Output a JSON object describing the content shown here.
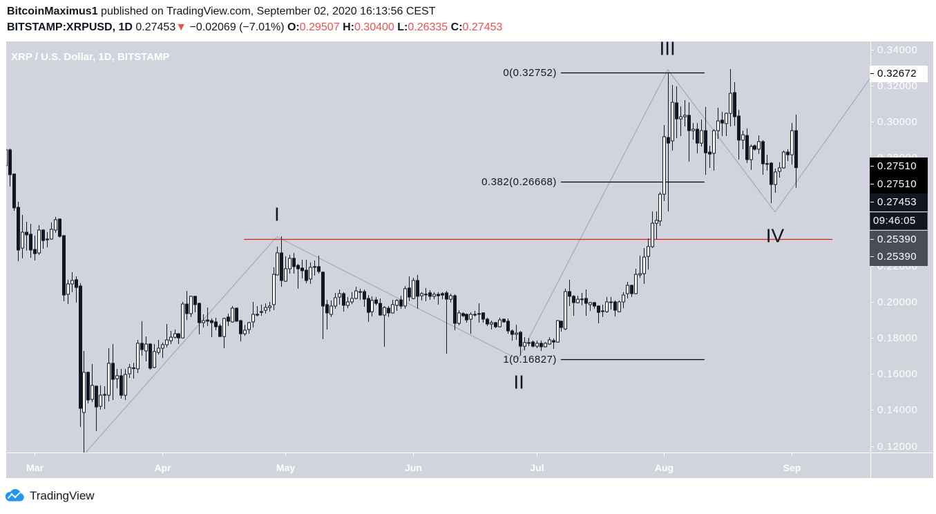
{
  "header": {
    "author": "BitcoinMaximus1",
    "published_text": " published on TradingView.com, September 02, 2020 16:13:56 CEST",
    "symbol": "BITSTAMP:XRPUSD, 1D",
    "last_price": "0.27453",
    "change_arrow": "▼",
    "change": "−0.02069 (−7.01%)",
    "ohlc": [
      {
        "label": "O:",
        "value": "0.29507"
      },
      {
        "label": "H:",
        "value": "0.30400"
      },
      {
        "label": "L:",
        "value": "0.26335"
      },
      {
        "label": "C:",
        "value": "0.27453"
      }
    ]
  },
  "chart": {
    "title": "XRP / U.S. Dollar, 1D, BITSTAMP"
  },
  "price_axis": {
    "top_badge": {
      "value": "0.32672",
      "kind": "white"
    },
    "badges": [
      {
        "value": "0.27510",
        "kind": "black"
      },
      {
        "value": "0.27510",
        "kind": "black"
      },
      {
        "value": "0.27453",
        "kind": "navy"
      },
      {
        "value": "09:46:05",
        "kind": "countdown"
      },
      {
        "value": "0.25390",
        "kind": "gray"
      },
      {
        "value": "0.25390",
        "kind": "gray"
      }
    ]
  },
  "footer": {
    "brand": "TradingView",
    "brand_color": "#2196f3"
  },
  "colors": {
    "chart_bg": "#d1d4dc",
    "down_value": "#ef5350",
    "candle_dark": "#131722",
    "candle_hollow": "#ffffff",
    "support_line": "#e31b1b",
    "zigzag": "#9ea1aa"
  },
  "chart_data": {
    "type": "candlestick",
    "title": "XRP / U.S. Dollar, 1D, BITSTAMP",
    "symbol": "BITSTAMP:XRPUSD",
    "interval": "1D",
    "xlabel": "",
    "ylabel": "",
    "ylim": [
      0.115,
      0.343
    ],
    "grid": false,
    "x_ticks": [
      {
        "label": "Mar",
        "index": 7
      },
      {
        "label": "Apr",
        "index": 38
      },
      {
        "label": "May",
        "index": 68
      },
      {
        "label": "Jun",
        "index": 99
      },
      {
        "label": "Jul",
        "index": 129
      },
      {
        "label": "Aug",
        "index": 160
      },
      {
        "label": "Sep",
        "index": 191
      }
    ],
    "y_ticks": [
      {
        "label": "0.34000",
        "price": 0.34
      },
      {
        "label": "0.32000",
        "price": 0.32
      },
      {
        "label": "0.30000",
        "price": 0.3
      },
      {
        "label": "0.28000",
        "price": 0.28
      },
      {
        "label": "0.22000",
        "price": 0.22
      },
      {
        "label": "0.20000",
        "price": 0.2
      },
      {
        "label": "0.18000",
        "price": 0.18
      },
      {
        "label": "0.16000",
        "price": 0.16
      },
      {
        "label": "0.14000",
        "price": 0.14
      },
      {
        "label": "0.12000",
        "price": 0.12
      }
    ],
    "ohlc_fields": [
      "open",
      "high",
      "low",
      "close"
    ],
    "ohlc": [
      [
        0.2756,
        0.2851,
        0.2748,
        0.2844
      ],
      [
        0.2844,
        0.2851,
        0.2641,
        0.2706
      ],
      [
        0.271,
        0.2713,
        0.2506,
        0.2522
      ],
      [
        0.2525,
        0.2556,
        0.2226,
        0.2288
      ],
      [
        0.2299,
        0.2483,
        0.2242,
        0.2387
      ],
      [
        0.2387,
        0.2445,
        0.2284,
        0.2372
      ],
      [
        0.2376,
        0.2433,
        0.2245,
        0.2288
      ],
      [
        0.2291,
        0.2368,
        0.223,
        0.2268
      ],
      [
        0.2272,
        0.2426,
        0.2261,
        0.2399
      ],
      [
        0.2399,
        0.2403,
        0.2295,
        0.2341
      ],
      [
        0.2349,
        0.2387,
        0.2303,
        0.2349
      ],
      [
        0.2349,
        0.2441,
        0.2345,
        0.2403
      ],
      [
        0.2399,
        0.2472,
        0.2384,
        0.2456
      ],
      [
        0.246,
        0.2464,
        0.2357,
        0.2364
      ],
      [
        0.2368,
        0.237,
        0.2004,
        0.2038
      ],
      [
        0.2042,
        0.2123,
        0.1988,
        0.21
      ],
      [
        0.21,
        0.2165,
        0.2054,
        0.2119
      ],
      [
        0.2123,
        0.2142,
        0.1996,
        0.208
      ],
      [
        0.2088,
        0.2104,
        0.1306,
        0.1409
      ],
      [
        0.1386,
        0.1728,
        0.1164,
        0.1609
      ],
      [
        0.1609,
        0.1613,
        0.1436,
        0.1455
      ],
      [
        0.1459,
        0.1655,
        0.1444,
        0.1536
      ],
      [
        0.1532,
        0.1536,
        0.1283,
        0.1417
      ],
      [
        0.1421,
        0.1536,
        0.1402,
        0.1482
      ],
      [
        0.1484,
        0.1532,
        0.1405,
        0.1486
      ],
      [
        0.1482,
        0.1743,
        0.1448,
        0.1659
      ],
      [
        0.1659,
        0.1766,
        0.1455,
        0.157
      ],
      [
        0.1574,
        0.1628,
        0.152,
        0.159
      ],
      [
        0.159,
        0.1628,
        0.1463,
        0.1482
      ],
      [
        0.1482,
        0.1628,
        0.1455,
        0.1597
      ],
      [
        0.1601,
        0.1655,
        0.1578,
        0.1636
      ],
      [
        0.1634,
        0.1662,
        0.1574,
        0.1632
      ],
      [
        0.1628,
        0.1789,
        0.1605,
        0.177
      ],
      [
        0.177,
        0.1893,
        0.1701,
        0.1735
      ],
      [
        0.1728,
        0.1808,
        0.167,
        0.1766
      ],
      [
        0.1766,
        0.177,
        0.1624,
        0.1632
      ],
      [
        0.1636,
        0.1766,
        0.1632,
        0.1724
      ],
      [
        0.172,
        0.1789,
        0.1708,
        0.1743
      ],
      [
        0.1743,
        0.1774,
        0.1689,
        0.1762
      ],
      [
        0.1762,
        0.1877,
        0.1747,
        0.1789
      ],
      [
        0.1785,
        0.1839,
        0.1766,
        0.1804
      ],
      [
        0.1804,
        0.1847,
        0.1797,
        0.1823
      ],
      [
        0.1823,
        0.1827,
        0.1766,
        0.18
      ],
      [
        0.18,
        0.2,
        0.1797,
        0.1988
      ],
      [
        0.1988,
        0.2061,
        0.19,
        0.1935
      ],
      [
        0.1935,
        0.2034,
        0.1916,
        0.2031
      ],
      [
        0.2031,
        0.2034,
        0.1942,
        0.1985
      ],
      [
        0.1992,
        0.1996,
        0.182,
        0.1885
      ],
      [
        0.1885,
        0.1931,
        0.1858,
        0.1896
      ],
      [
        0.19,
        0.1969,
        0.1866,
        0.1893
      ],
      [
        0.1896,
        0.1908,
        0.1804,
        0.1885
      ],
      [
        0.1889,
        0.1912,
        0.1843,
        0.1862
      ],
      [
        0.1866,
        0.1877,
        0.1804,
        0.1808
      ],
      [
        0.1808,
        0.1912,
        0.1743,
        0.1908
      ],
      [
        0.1916,
        0.1935,
        0.1866,
        0.1893
      ],
      [
        0.1889,
        0.1977,
        0.1885,
        0.1965
      ],
      [
        0.1965,
        0.1969,
        0.1889,
        0.1893
      ],
      [
        0.1896,
        0.19,
        0.1781,
        0.1823
      ],
      [
        0.1823,
        0.1873,
        0.1812,
        0.1843
      ],
      [
        0.1847,
        0.1889,
        0.1823,
        0.1885
      ],
      [
        0.1889,
        0.2,
        0.1858,
        0.1931
      ],
      [
        0.193,
        0.1977,
        0.1919,
        0.1931
      ],
      [
        0.1942,
        0.1985,
        0.1923,
        0.1946
      ],
      [
        0.1954,
        0.1992,
        0.1935,
        0.1969
      ],
      [
        0.1969,
        0.2,
        0.1946,
        0.1977
      ],
      [
        0.1985,
        0.2192,
        0.1954,
        0.2153
      ],
      [
        0.215,
        0.2307,
        0.2146,
        0.2272
      ],
      [
        0.2272,
        0.2364,
        0.2084,
        0.2119
      ],
      [
        0.2115,
        0.2253,
        0.2111,
        0.2184
      ],
      [
        0.2184,
        0.2261,
        0.2157,
        0.2242
      ],
      [
        0.2242,
        0.2272,
        0.2157,
        0.2196
      ],
      [
        0.2203,
        0.2211,
        0.2073,
        0.2184
      ],
      [
        0.2188,
        0.2234,
        0.213,
        0.2173
      ],
      [
        0.2176,
        0.2234,
        0.2104,
        0.2119
      ],
      [
        0.2127,
        0.2219,
        0.21,
        0.2192
      ],
      [
        0.2196,
        0.223,
        0.2146,
        0.2192
      ],
      [
        0.2196,
        0.2257,
        0.2157,
        0.2169
      ],
      [
        0.2165,
        0.2169,
        0.1793,
        0.1977
      ],
      [
        0.1985,
        0.2011,
        0.1847,
        0.1939
      ],
      [
        0.1931,
        0.2008,
        0.1916,
        0.1977
      ],
      [
        0.1977,
        0.205,
        0.1962,
        0.2023
      ],
      [
        0.2027,
        0.2069,
        0.1985,
        0.2046
      ],
      [
        0.2046,
        0.2054,
        0.1946,
        0.1981
      ],
      [
        0.1981,
        0.2027,
        0.1965,
        0.2
      ],
      [
        0.2,
        0.2054,
        0.1988,
        0.2019
      ],
      [
        0.2019,
        0.2084,
        0.2015,
        0.2061
      ],
      [
        0.2057,
        0.2073,
        0.2011,
        0.2054
      ],
      [
        0.2057,
        0.2069,
        0.1973,
        0.2015
      ],
      [
        0.2019,
        0.2038,
        0.1889,
        0.1942
      ],
      [
        0.1946,
        0.2031,
        0.1919,
        0.2008
      ],
      [
        0.2011,
        0.2027,
        0.1981,
        0.1992
      ],
      [
        0.1992,
        0.2019,
        0.1923,
        0.1927
      ],
      [
        0.1927,
        0.1977,
        0.1751,
        0.1969
      ],
      [
        0.1965,
        0.1977,
        0.1916,
        0.1939
      ],
      [
        0.1939,
        0.2011,
        0.1935,
        0.1985
      ],
      [
        0.1981,
        0.2015,
        0.195,
        0.2008
      ],
      [
        0.2011,
        0.2034,
        0.1962,
        0.1977
      ],
      [
        0.1977,
        0.2088,
        0.1962,
        0.2073
      ],
      [
        0.2077,
        0.2142,
        0.2004,
        0.2027
      ],
      [
        0.2019,
        0.2134,
        0.2015,
        0.2119
      ],
      [
        0.2119,
        0.215,
        0.1962,
        0.2031
      ],
      [
        0.2034,
        0.2054,
        0.2008,
        0.2046
      ],
      [
        0.2043,
        0.2077,
        0.2004,
        0.2042
      ],
      [
        0.205,
        0.2065,
        0.2011,
        0.2031
      ],
      [
        0.2031,
        0.2054,
        0.2015,
        0.2042
      ],
      [
        0.2042,
        0.2054,
        0.1985,
        0.2034
      ],
      [
        0.2046,
        0.2054,
        0.2015,
        0.2038
      ],
      [
        0.205,
        0.2061,
        0.1712,
        0.2015
      ],
      [
        0.2015,
        0.2046,
        0.1996,
        0.2034
      ],
      [
        0.2034,
        0.2042,
        0.1843,
        0.1881
      ],
      [
        0.1881,
        0.1954,
        0.187,
        0.1939
      ],
      [
        0.1935,
        0.1942,
        0.1916,
        0.1923
      ],
      [
        0.1931,
        0.1935,
        0.1885,
        0.19
      ],
      [
        0.1904,
        0.1942,
        0.1823,
        0.1931
      ],
      [
        0.1927,
        0.195,
        0.1919,
        0.1931
      ],
      [
        0.1935,
        0.1992,
        0.1885,
        0.1931
      ],
      [
        0.1939,
        0.1942,
        0.1885,
        0.1904
      ],
      [
        0.1904,
        0.1912,
        0.1866,
        0.1877
      ],
      [
        0.1877,
        0.1896,
        0.1847,
        0.1885
      ],
      [
        0.1885,
        0.1889,
        0.1854,
        0.1862
      ],
      [
        0.1862,
        0.1912,
        0.1858,
        0.19
      ],
      [
        0.1904,
        0.1908,
        0.1885,
        0.1889
      ],
      [
        0.1893,
        0.1908,
        0.1823,
        0.1839
      ],
      [
        0.1839,
        0.1847,
        0.1785,
        0.182
      ],
      [
        0.182,
        0.1873,
        0.1789,
        0.1827
      ],
      [
        0.1831,
        0.1839,
        0.1701,
        0.1754
      ],
      [
        0.1754,
        0.1804,
        0.1731,
        0.1774
      ],
      [
        0.1774,
        0.18,
        0.1754,
        0.1774
      ],
      [
        0.1777,
        0.1785,
        0.1747,
        0.1754
      ],
      [
        0.1754,
        0.1785,
        0.1743,
        0.177
      ],
      [
        0.177,
        0.1785,
        0.1728,
        0.1751
      ],
      [
        0.1751,
        0.1777,
        0.1747,
        0.177
      ],
      [
        0.1766,
        0.1804,
        0.1762,
        0.1789
      ],
      [
        0.1785,
        0.1797,
        0.1739,
        0.1777
      ],
      [
        0.1777,
        0.19,
        0.1774,
        0.1896
      ],
      [
        0.1893,
        0.1896,
        0.1835,
        0.1858
      ],
      [
        0.185,
        0.2073,
        0.1843,
        0.2057
      ],
      [
        0.2057,
        0.2123,
        0.1977,
        0.2031
      ],
      [
        0.2031,
        0.2038,
        0.1923,
        0.1996
      ],
      [
        0.1996,
        0.2034,
        0.1992,
        0.2015
      ],
      [
        0.2015,
        0.205,
        0.1981,
        0.2016
      ],
      [
        0.2019,
        0.2069,
        0.1923,
        0.1992
      ],
      [
        0.1985,
        0.2,
        0.195,
        0.1996
      ],
      [
        0.1996,
        0.2,
        0.1962,
        0.1977
      ],
      [
        0.1977,
        0.1981,
        0.1881,
        0.1942
      ],
      [
        0.1949,
        0.1985,
        0.1916,
        0.195
      ],
      [
        0.1946,
        0.2027,
        0.1939,
        0.2
      ],
      [
        0.2,
        0.2027,
        0.1958,
        0.1996
      ],
      [
        0.2,
        0.2008,
        0.1919,
        0.1954
      ],
      [
        0.1946,
        0.2008,
        0.1942,
        0.2
      ],
      [
        0.2,
        0.2054,
        0.1965,
        0.2038
      ],
      [
        0.2046,
        0.2111,
        0.2019,
        0.2092
      ],
      [
        0.2092,
        0.2096,
        0.2027,
        0.2046
      ],
      [
        0.2046,
        0.2184,
        0.2042,
        0.2153
      ],
      [
        0.215,
        0.2257,
        0.2134,
        0.2157
      ],
      [
        0.2157,
        0.2299,
        0.21,
        0.2249
      ],
      [
        0.2253,
        0.2353,
        0.218,
        0.2307
      ],
      [
        0.2307,
        0.2502,
        0.2299,
        0.2437
      ],
      [
        0.2437,
        0.2502,
        0.2349,
        0.2453
      ],
      [
        0.2449,
        0.261,
        0.2422,
        0.2598
      ],
      [
        0.2598,
        0.2982,
        0.256,
        0.2917
      ],
      [
        0.2913,
        0.3275,
        0.2502,
        0.2882
      ],
      [
        0.2894,
        0.3204,
        0.284,
        0.3108
      ],
      [
        0.3105,
        0.3197,
        0.2909,
        0.3016
      ],
      [
        0.3016,
        0.3085,
        0.2921,
        0.3028
      ],
      [
        0.3028,
        0.312,
        0.2974,
        0.3036
      ],
      [
        0.3036,
        0.3108,
        0.2779,
        0.2951
      ],
      [
        0.2951,
        0.2993,
        0.2901,
        0.2959
      ],
      [
        0.2959,
        0.2993,
        0.2825,
        0.2882
      ],
      [
        0.2882,
        0.3013,
        0.2863,
        0.2951
      ],
      [
        0.2951,
        0.3082,
        0.2706,
        0.2828
      ],
      [
        0.2832,
        0.2867,
        0.2744,
        0.2821
      ],
      [
        0.2825,
        0.2959,
        0.2729,
        0.2951
      ],
      [
        0.2951,
        0.3078,
        0.2905,
        0.3005
      ],
      [
        0.3009,
        0.3055,
        0.2921,
        0.2993
      ],
      [
        0.299,
        0.3051,
        0.2921,
        0.3047
      ],
      [
        0.3047,
        0.3293,
        0.2974,
        0.3158
      ],
      [
        0.3162,
        0.322,
        0.2978,
        0.3028
      ],
      [
        0.3032,
        0.3066,
        0.279,
        0.2898
      ],
      [
        0.2898,
        0.2951,
        0.2848,
        0.2928
      ],
      [
        0.2924,
        0.2963,
        0.2771,
        0.279
      ],
      [
        0.279,
        0.2874,
        0.2733,
        0.2863
      ],
      [
        0.2867,
        0.2874,
        0.284,
        0.2848
      ],
      [
        0.2848,
        0.2924,
        0.2821,
        0.289
      ],
      [
        0.289,
        0.2898,
        0.2706,
        0.2767
      ],
      [
        0.2767,
        0.2817,
        0.2729,
        0.2768
      ],
      [
        0.2771,
        0.2775,
        0.2548,
        0.2652
      ],
      [
        0.2652,
        0.274,
        0.2606,
        0.2721
      ],
      [
        0.2725,
        0.2775,
        0.269,
        0.2744
      ],
      [
        0.2744,
        0.284,
        0.274,
        0.2832
      ],
      [
        0.2832,
        0.2848,
        0.2782,
        0.2817
      ],
      [
        0.2817,
        0.2993,
        0.2763,
        0.2951
      ],
      [
        0.29507,
        0.304,
        0.26335,
        0.27453
      ]
    ],
    "last_price": 0.27453,
    "fib_retracement": {
      "start_index": 134.9,
      "end_index": 169.8,
      "levels": [
        {
          "ratio": 0,
          "price": 0.32752,
          "label": "0(0.32752)"
        },
        {
          "ratio": 0.382,
          "price": 0.26668,
          "label": "0.382(0.26668)"
        },
        {
          "ratio": 1,
          "price": 0.16827,
          "label": "1(0.16827)"
        }
      ]
    },
    "horizontal_line": {
      "price": 0.2349,
      "start_index": 57.9,
      "end_index": 200.9,
      "color": "#e31b1b"
    },
    "elliott_wave": {
      "points": [
        {
          "index": 19.1,
          "price": 0.1156
        },
        {
          "index": 65.9,
          "price": 0.2362
        },
        {
          "index": 124.5,
          "price": 0.1682
        },
        {
          "index": 160.9,
          "price": 0.3289
        },
        {
          "index": 186.95,
          "price": 0.2499
        },
        {
          "index": 210.1,
          "price": 0.3243
        }
      ],
      "labels": [
        {
          "text": "I",
          "index": 65.9,
          "price": 0.2487
        },
        {
          "text": "II",
          "index": 124.7,
          "price": 0.1555
        },
        {
          "text": "III",
          "index": 160.8,
          "price": 0.3408
        },
        {
          "text": "IV",
          "index": 186.95,
          "price": 0.2368
        }
      ]
    }
  }
}
